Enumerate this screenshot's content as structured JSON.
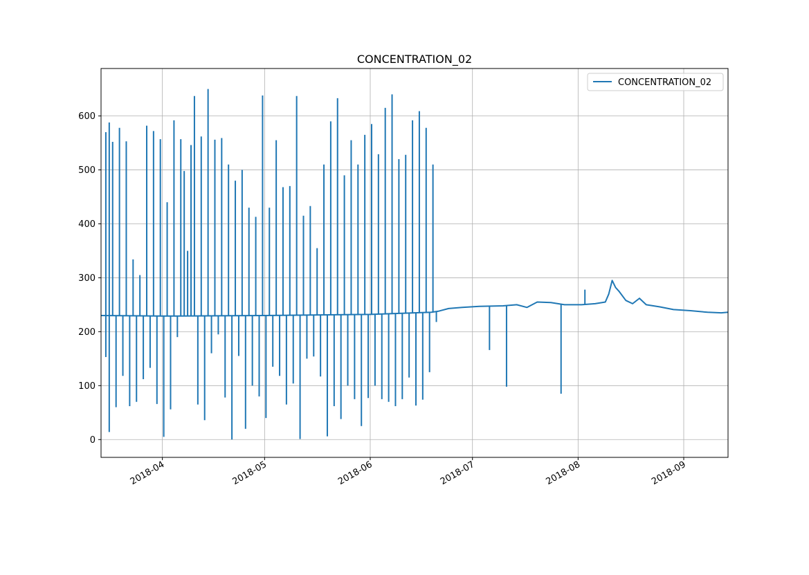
{
  "chart_data": {
    "type": "line",
    "title": "CONCENTRATION_02",
    "xlabel": "",
    "ylabel": "",
    "grid": true,
    "legend_position": "top-right",
    "x_axis": "date",
    "xlim": [
      "2018-03-14",
      "2018-09-14"
    ],
    "ylim": [
      -33,
      688
    ],
    "x_ticks": [
      "2018-04",
      "2018-05",
      "2018-06",
      "2018-07",
      "2018-08",
      "2018-09"
    ],
    "y_ticks": [
      0,
      100,
      200,
      300,
      400,
      500,
      600
    ],
    "series": [
      {
        "name": "CONCENTRATION_02",
        "color": "#1f77b4",
        "baseline_points": [
          [
            "2018-03-14",
            230
          ],
          [
            "2018-04-01",
            229
          ],
          [
            "2018-05-01",
            230
          ],
          [
            "2018-06-01",
            232
          ],
          [
            "2018-06-19",
            236
          ],
          [
            "2018-06-21",
            238
          ],
          [
            "2018-06-24",
            243
          ],
          [
            "2018-06-28",
            245
          ],
          [
            "2018-07-03",
            247
          ],
          [
            "2018-07-10",
            248
          ],
          [
            "2018-07-14",
            250
          ],
          [
            "2018-07-17",
            245
          ],
          [
            "2018-07-20",
            255
          ],
          [
            "2018-07-24",
            254
          ],
          [
            "2018-07-28",
            250
          ],
          [
            "2018-08-02",
            250
          ],
          [
            "2018-08-06",
            252
          ],
          [
            "2018-08-09",
            255
          ],
          [
            "2018-08-10",
            270
          ],
          [
            "2018-08-11",
            295
          ],
          [
            "2018-08-12",
            282
          ],
          [
            "2018-08-13",
            275
          ],
          [
            "2018-08-15",
            258
          ],
          [
            "2018-08-17",
            252
          ],
          [
            "2018-08-19",
            262
          ],
          [
            "2018-08-21",
            250
          ],
          [
            "2018-08-25",
            246
          ],
          [
            "2018-08-29",
            241
          ],
          [
            "2018-09-03",
            239
          ],
          [
            "2018-09-08",
            236
          ],
          [
            "2018-09-12",
            235
          ],
          [
            "2018-09-14",
            236
          ]
        ],
        "spikes": [
          [
            "2018-03-15",
            570
          ],
          [
            "2018-03-15",
            153
          ],
          [
            "2018-03-16",
            588
          ],
          [
            "2018-03-16",
            14
          ],
          [
            "2018-03-17",
            552
          ],
          [
            "2018-03-18",
            60
          ],
          [
            "2018-03-19",
            578
          ],
          [
            "2018-03-20",
            118
          ],
          [
            "2018-03-21",
            553
          ],
          [
            "2018-03-22",
            62
          ],
          [
            "2018-03-23",
            334
          ],
          [
            "2018-03-24",
            70
          ],
          [
            "2018-03-25",
            305
          ],
          [
            "2018-03-26",
            112
          ],
          [
            "2018-03-27",
            582
          ],
          [
            "2018-03-28",
            133
          ],
          [
            "2018-03-29",
            572
          ],
          [
            "2018-03-30",
            66
          ],
          [
            "2018-03-31",
            557
          ],
          [
            "2018-04-01",
            5
          ],
          [
            "2018-04-02",
            440
          ],
          [
            "2018-04-03",
            56
          ],
          [
            "2018-04-04",
            592
          ],
          [
            "2018-04-05",
            190
          ],
          [
            "2018-04-06",
            557
          ],
          [
            "2018-04-07",
            498
          ],
          [
            "2018-04-08",
            350
          ],
          [
            "2018-04-09",
            546
          ],
          [
            "2018-04-10",
            637
          ],
          [
            "2018-04-11",
            65
          ],
          [
            "2018-04-12",
            562
          ],
          [
            "2018-04-13",
            36
          ],
          [
            "2018-04-14",
            650
          ],
          [
            "2018-04-15",
            160
          ],
          [
            "2018-04-16",
            556
          ],
          [
            "2018-04-17",
            195
          ],
          [
            "2018-04-18",
            559
          ],
          [
            "2018-04-19",
            78
          ],
          [
            "2018-04-20",
            510
          ],
          [
            "2018-04-21",
            0
          ],
          [
            "2018-04-22",
            480
          ],
          [
            "2018-04-23",
            155
          ],
          [
            "2018-04-24",
            500
          ],
          [
            "2018-04-25",
            20
          ],
          [
            "2018-04-26",
            430
          ],
          [
            "2018-04-27",
            100
          ],
          [
            "2018-04-28",
            413
          ],
          [
            "2018-04-29",
            80
          ],
          [
            "2018-04-30",
            638
          ],
          [
            "2018-05-01",
            40
          ],
          [
            "2018-05-02",
            430
          ],
          [
            "2018-05-03",
            135
          ],
          [
            "2018-05-04",
            555
          ],
          [
            "2018-05-05",
            118
          ],
          [
            "2018-05-06",
            468
          ],
          [
            "2018-05-07",
            65
          ],
          [
            "2018-05-08",
            470
          ],
          [
            "2018-05-09",
            104
          ],
          [
            "2018-05-10",
            637
          ],
          [
            "2018-05-11",
            1
          ],
          [
            "2018-05-12",
            415
          ],
          [
            "2018-05-13",
            150
          ],
          [
            "2018-05-14",
            433
          ],
          [
            "2018-05-15",
            154
          ],
          [
            "2018-05-16",
            355
          ],
          [
            "2018-05-17",
            117
          ],
          [
            "2018-05-18",
            510
          ],
          [
            "2018-05-19",
            6
          ],
          [
            "2018-05-20",
            590
          ],
          [
            "2018-05-21",
            62
          ],
          [
            "2018-05-22",
            633
          ],
          [
            "2018-05-23",
            38
          ],
          [
            "2018-05-24",
            490
          ],
          [
            "2018-05-25",
            100
          ],
          [
            "2018-05-26",
            555
          ],
          [
            "2018-05-27",
            75
          ],
          [
            "2018-05-28",
            510
          ],
          [
            "2018-05-29",
            25
          ],
          [
            "2018-05-30",
            565
          ],
          [
            "2018-05-31",
            77
          ],
          [
            "2018-06-01",
            585
          ],
          [
            "2018-06-02",
            100
          ],
          [
            "2018-06-03",
            529
          ],
          [
            "2018-06-04",
            75
          ],
          [
            "2018-06-05",
            615
          ],
          [
            "2018-06-06",
            70
          ],
          [
            "2018-06-07",
            640
          ],
          [
            "2018-06-08",
            62
          ],
          [
            "2018-06-09",
            520
          ],
          [
            "2018-06-10",
            75
          ],
          [
            "2018-06-11",
            528
          ],
          [
            "2018-06-12",
            115
          ],
          [
            "2018-06-13",
            592
          ],
          [
            "2018-06-14",
            63
          ],
          [
            "2018-06-15",
            609
          ],
          [
            "2018-06-16",
            74
          ],
          [
            "2018-06-17",
            578
          ],
          [
            "2018-06-18",
            125
          ],
          [
            "2018-06-19",
            510
          ],
          [
            "2018-06-20",
            218
          ]
        ],
        "dips": [
          [
            "2018-07-06",
            166
          ],
          [
            "2018-07-11",
            98
          ],
          [
            "2018-07-27",
            85
          ],
          [
            "2018-08-03",
            278
          ]
        ]
      }
    ]
  }
}
